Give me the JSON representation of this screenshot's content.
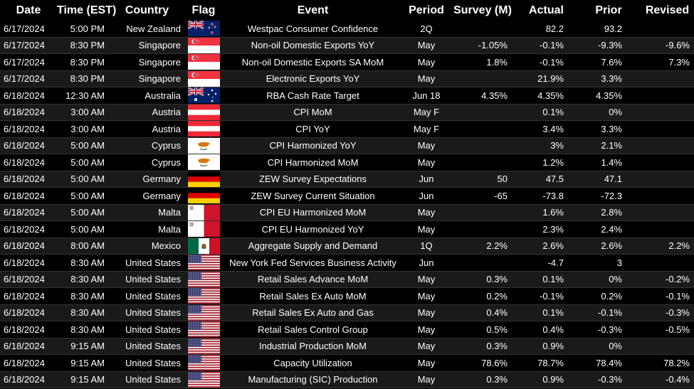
{
  "headers": [
    "Date",
    "Time (EST)",
    "Country",
    "Flag",
    "Event",
    "Period",
    "Survey (M)",
    "Actual",
    "Prior",
    "Revised"
  ],
  "rows": [
    {
      "date": "6/17/2024",
      "time": "5:00 PM",
      "country": "New Zealand",
      "flag": "nz",
      "event": "Westpac Consumer Confidence",
      "period": "2Q",
      "survey": "",
      "actual": "82.2",
      "prior": "93.2",
      "revised": ""
    },
    {
      "date": "6/17/2024",
      "time": "8:30 PM",
      "country": "Singapore",
      "flag": "sg",
      "event": "Non-oil Domestic Exports YoY",
      "period": "May",
      "survey": "-1.05%",
      "actual": "-0.1%",
      "prior": "-9.3%",
      "revised": "-9.6%"
    },
    {
      "date": "6/17/2024",
      "time": "8:30 PM",
      "country": "Singapore",
      "flag": "sg",
      "event": "Non-oil Domestic Exports SA MoM",
      "period": "May",
      "survey": "1.8%",
      "actual": "-0.1%",
      "prior": "7.6%",
      "revised": "7.3%"
    },
    {
      "date": "6/17/2024",
      "time": "8:30 PM",
      "country": "Singapore",
      "flag": "sg",
      "event": "Electronic Exports YoY",
      "period": "May",
      "survey": "",
      "actual": "21.9%",
      "prior": "3.3%",
      "revised": ""
    },
    {
      "date": "6/18/2024",
      "time": "12:30 AM",
      "country": "Australia",
      "flag": "au",
      "event": "RBA Cash Rate Target",
      "period": "Jun 18",
      "survey": "4.35%",
      "actual": "4.35%",
      "prior": "4.35%",
      "revised": ""
    },
    {
      "date": "6/18/2024",
      "time": "3:00 AM",
      "country": "Austria",
      "flag": "at",
      "event": "CPI MoM",
      "period": "May F",
      "survey": "",
      "actual": "0.1%",
      "prior": "0%",
      "revised": ""
    },
    {
      "date": "6/18/2024",
      "time": "3:00 AM",
      "country": "Austria",
      "flag": "at",
      "event": "CPI YoY",
      "period": "May F",
      "survey": "",
      "actual": "3.4%",
      "prior": "3.3%",
      "revised": ""
    },
    {
      "date": "6/18/2024",
      "time": "5:00 AM",
      "country": "Cyprus",
      "flag": "cy",
      "event": "CPI Harmonized YoY",
      "period": "May",
      "survey": "",
      "actual": "3%",
      "prior": "2.1%",
      "revised": ""
    },
    {
      "date": "6/18/2024",
      "time": "5:00 AM",
      "country": "Cyprus",
      "flag": "cy",
      "event": "CPI Harmonized MoM",
      "period": "May",
      "survey": "",
      "actual": "1.2%",
      "prior": "1.4%",
      "revised": ""
    },
    {
      "date": "6/18/2024",
      "time": "5:00 AM",
      "country": "Germany",
      "flag": "de",
      "event": "ZEW Survey Expectations",
      "period": "Jun",
      "survey": "50",
      "actual": "47.5",
      "prior": "47.1",
      "revised": ""
    },
    {
      "date": "6/18/2024",
      "time": "5:00 AM",
      "country": "Germany",
      "flag": "de",
      "event": "ZEW Survey Current Situation",
      "period": "Jun",
      "survey": "-65",
      "actual": "-73.8",
      "prior": "-72.3",
      "revised": ""
    },
    {
      "date": "6/18/2024",
      "time": "5:00 AM",
      "country": "Malta",
      "flag": "mt",
      "event": "CPI EU Harmonized MoM",
      "period": "May",
      "survey": "",
      "actual": "1.6%",
      "prior": "2.8%",
      "revised": ""
    },
    {
      "date": "6/18/2024",
      "time": "5:00 AM",
      "country": "Malta",
      "flag": "mt",
      "event": "CPI EU Harmonized YoY",
      "period": "May",
      "survey": "",
      "actual": "2.3%",
      "prior": "2.4%",
      "revised": ""
    },
    {
      "date": "6/18/2024",
      "time": "8:00 AM",
      "country": "Mexico",
      "flag": "mx",
      "event": "Aggregate Supply and Demand",
      "period": "1Q",
      "survey": "2.2%",
      "actual": "2.6%",
      "prior": "2.6%",
      "revised": "2.2%"
    },
    {
      "date": "6/18/2024",
      "time": "8:30 AM",
      "country": "United States",
      "flag": "us",
      "event": "New York Fed Services Business Activity",
      "period": "Jun",
      "survey": "",
      "actual": "-4.7",
      "prior": "3",
      "revised": ""
    },
    {
      "date": "6/18/2024",
      "time": "8:30 AM",
      "country": "United States",
      "flag": "us",
      "event": "Retail Sales Advance MoM",
      "period": "May",
      "survey": "0.3%",
      "actual": "0.1%",
      "prior": "0%",
      "revised": "-0.2%"
    },
    {
      "date": "6/18/2024",
      "time": "8:30 AM",
      "country": "United States",
      "flag": "us",
      "event": "Retail Sales Ex Auto MoM",
      "period": "May",
      "survey": "0.2%",
      "actual": "-0.1%",
      "prior": "0.2%",
      "revised": "-0.1%"
    },
    {
      "date": "6/18/2024",
      "time": "8:30 AM",
      "country": "United States",
      "flag": "us",
      "event": "Retail Sales Ex Auto and Gas",
      "period": "May",
      "survey": "0.4%",
      "actual": "0.1%",
      "prior": "-0.1%",
      "revised": "-0.3%"
    },
    {
      "date": "6/18/2024",
      "time": "8:30 AM",
      "country": "United States",
      "flag": "us",
      "event": "Retail Sales Control Group",
      "period": "May",
      "survey": "0.5%",
      "actual": "0.4%",
      "prior": "-0.3%",
      "revised": "-0.5%"
    },
    {
      "date": "6/18/2024",
      "time": "9:15 AM",
      "country": "United States",
      "flag": "us",
      "event": "Industrial Production MoM",
      "period": "May",
      "survey": "0.3%",
      "actual": "0.9%",
      "prior": "0%",
      "revised": ""
    },
    {
      "date": "6/18/2024",
      "time": "9:15 AM",
      "country": "United States",
      "flag": "us",
      "event": "Capacity Utilization",
      "period": "May",
      "survey": "78.6%",
      "actual": "78.7%",
      "prior": "78.4%",
      "revised": "78.2%"
    },
    {
      "date": "6/18/2024",
      "time": "9:15 AM",
      "country": "United States",
      "flag": "us",
      "event": "Manufacturing (SIC) Production",
      "period": "May",
      "survey": "0.3%",
      "actual": "0.9%",
      "prior": "-0.3%",
      "revised": "-0.4%"
    }
  ],
  "colors": {
    "background": "#000000",
    "text": "#ffffff",
    "row_alt": "#1a1a1a"
  }
}
